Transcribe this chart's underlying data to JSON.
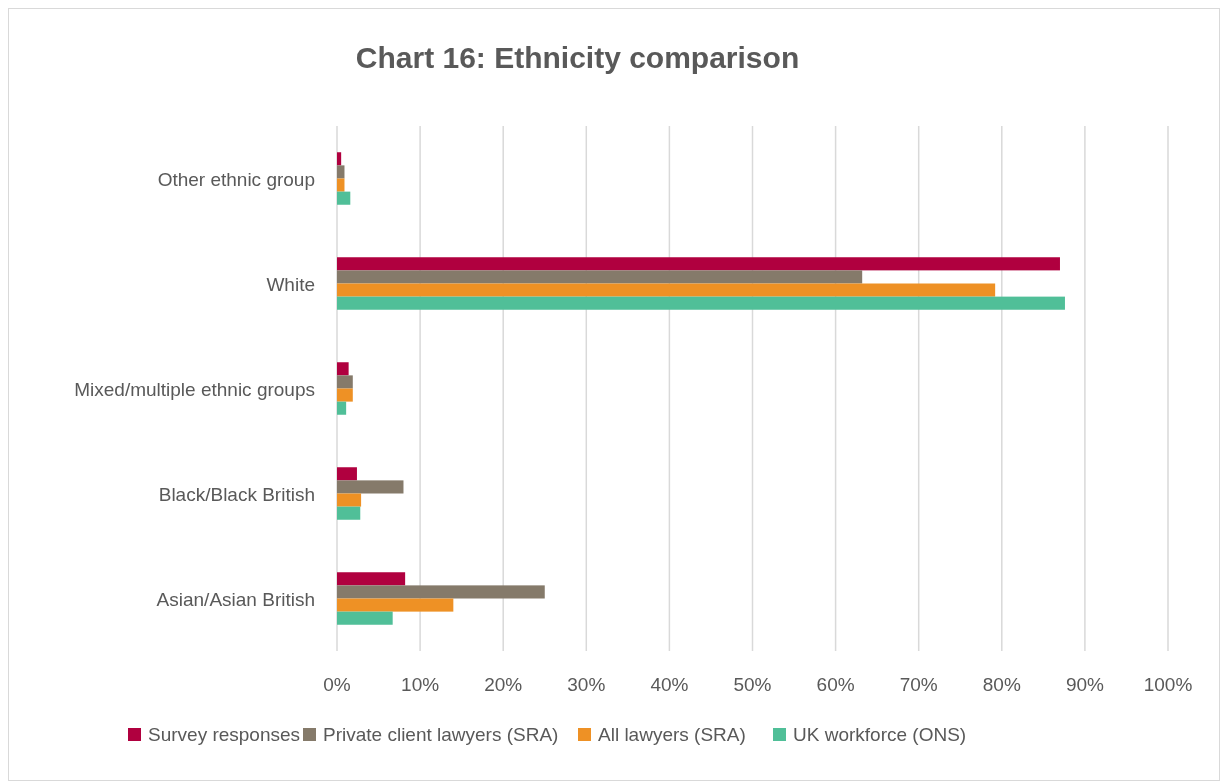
{
  "chart_data": {
    "type": "bar",
    "orientation": "horizontal",
    "title": "Chart 16: Ethnicity comparison",
    "categories": [
      "Other ethnic group",
      "White",
      "Mixed/multiple ethnic groups",
      "Black/Black British",
      "Asian/Asian British"
    ],
    "series": [
      {
        "name": "Survey responses",
        "color": "#b0003f",
        "values": [
          0.5,
          87.0,
          1.4,
          2.4,
          8.2
        ]
      },
      {
        "name": "Private client lawyers (SRA)",
        "color": "#857a6a",
        "values": [
          0.9,
          63.2,
          1.9,
          8.0,
          25.0
        ]
      },
      {
        "name": "All lawyers (SRA)",
        "color": "#ee9125",
        "values": [
          0.9,
          79.2,
          1.9,
          2.9,
          14.0
        ]
      },
      {
        "name": "UK workforce (ONS)",
        "color": "#50bf98",
        "values": [
          1.6,
          87.6,
          1.1,
          2.8,
          6.7
        ]
      }
    ],
    "xlim": [
      0,
      100
    ],
    "xticks": [
      {
        "value": 0,
        "label": "0%"
      },
      {
        "value": 10,
        "label": "10%"
      },
      {
        "value": 20,
        "label": "20%"
      },
      {
        "value": 30,
        "label": "30%"
      },
      {
        "value": 40,
        "label": "40%"
      },
      {
        "value": 50,
        "label": "50%"
      },
      {
        "value": 60,
        "label": "60%"
      },
      {
        "value": 70,
        "label": "70%"
      },
      {
        "value": 80,
        "label": "80%"
      },
      {
        "value": 90,
        "label": "90%"
      },
      {
        "value": 100,
        "label": "100%"
      }
    ],
    "grid": "x",
    "legend": "bottom"
  }
}
